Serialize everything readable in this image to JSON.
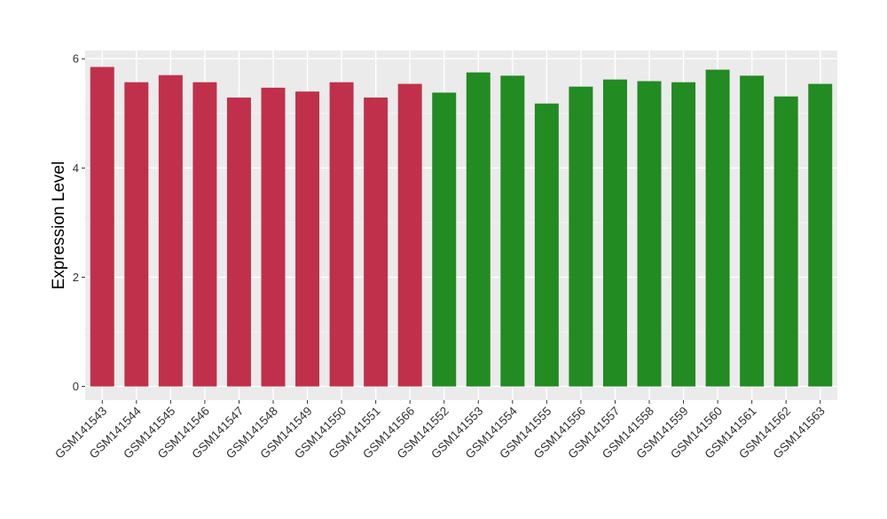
{
  "chart_data": {
    "type": "bar",
    "ylabel": "Expression Level",
    "ylim": [
      -0.25,
      6.15
    ],
    "yticks": [
      0,
      2,
      4,
      6
    ],
    "tick_labels_y": [
      "0",
      "2",
      "4",
      "6"
    ],
    "grid": true,
    "panel_background": "#ebebeb",
    "categories": [
      "GSM141543",
      "GSM141544",
      "GSM141545",
      "GSM141546",
      "GSM141547",
      "GSM141548",
      "GSM141549",
      "GSM141550",
      "GSM141551",
      "GSM141566",
      "GSM141552",
      "GSM141553",
      "GSM141554",
      "GSM141555",
      "GSM141556",
      "GSM141557",
      "GSM141558",
      "GSM141559",
      "GSM141560",
      "GSM141561",
      "GSM141562",
      "GSM141563"
    ],
    "values": [
      5.85,
      5.57,
      5.7,
      5.57,
      5.29,
      5.47,
      5.4,
      5.57,
      5.29,
      5.54,
      5.38,
      5.75,
      5.69,
      5.18,
      5.49,
      5.62,
      5.59,
      5.57,
      5.8,
      5.69,
      5.31,
      5.54
    ],
    "bar_colors": [
      "#c1304a",
      "#c1304a",
      "#c1304a",
      "#c1304a",
      "#c1304a",
      "#c1304a",
      "#c1304a",
      "#c1304a",
      "#c1304a",
      "#c1304a",
      "#228b22",
      "#228b22",
      "#228b22",
      "#228b22",
      "#228b22",
      "#228b22",
      "#228b22",
      "#228b22",
      "#228b22",
      "#228b22",
      "#228b22",
      "#228b22"
    ]
  }
}
